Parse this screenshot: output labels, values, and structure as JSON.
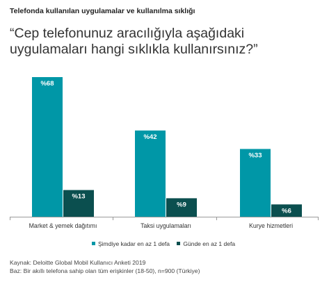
{
  "header": {
    "title": "Telefonda kullanılan uygulamalar ve kullanılma sıklığı",
    "question": "“Cep telefonunuz aracılığıyla aşağıdaki uygulamaları hangi sıklıkla kullanırsınız?”"
  },
  "chart_data": {
    "type": "bar",
    "categories": [
      "Market & yemek dağıtımı",
      "Taksi uygulamaları",
      "Kurye hizmetleri"
    ],
    "series": [
      {
        "name": "Şimdiye kadar en az 1 defa",
        "color": "#0097a7",
        "values": [
          68,
          42,
          33
        ],
        "labels": [
          "%68",
          "%42",
          "%33"
        ]
      },
      {
        "name": "Günde en az 1 defa",
        "color": "#0b4f4f",
        "values": [
          13,
          9,
          6
        ],
        "labels": [
          "%13",
          "%9",
          "%6"
        ]
      }
    ],
    "ylim": [
      0,
      68
    ],
    "grid": false,
    "legend_position": "bottom"
  },
  "footer": {
    "source": "Kaynak: Deloitte Global Mobil Kullanıcı Anketi 2019",
    "base": "Baz: Bir akıllı telefona sahip olan tüm erişkinler (18-50), n=900 (Türkiye)"
  }
}
